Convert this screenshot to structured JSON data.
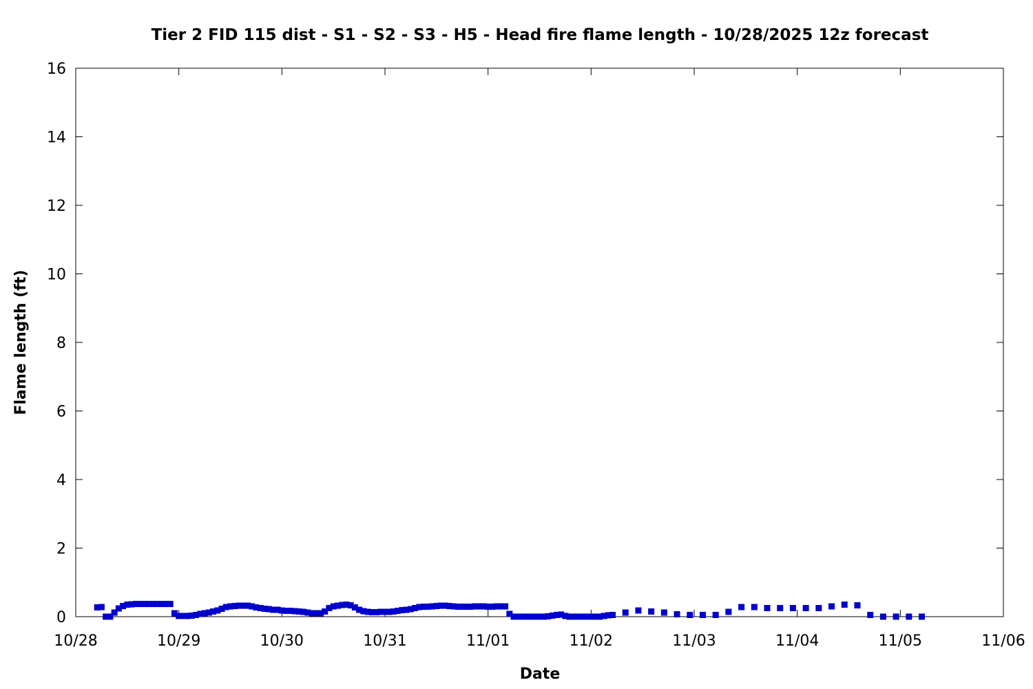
{
  "chart_data": {
    "type": "scatter",
    "title": "Tier 2 FID 115 dist - S1 - S2 - S3 - H5 - Head fire flame length - 10/28/2025 12z forecast",
    "xlabel": "Date",
    "ylabel": "Flame length (ft)",
    "x_axis_type": "date",
    "xlim": [
      "10/28",
      "11/06"
    ],
    "x_ticks": [
      "10/28",
      "10/29",
      "10/30",
      "10/31",
      "11/01",
      "11/02",
      "11/03",
      "11/04",
      "11/05",
      "11/06"
    ],
    "ylim": [
      0,
      16
    ],
    "y_ticks": [
      "0",
      "2",
      "4",
      "6",
      "8",
      "10",
      "12",
      "14",
      "16"
    ],
    "grid": false,
    "legend": "none",
    "marker": "square",
    "color": "#0000cc",
    "series": [
      {
        "points": [
          [
            "10/28 05:00",
            0.27
          ],
          [
            "10/28 06:00",
            0.28
          ],
          [
            "10/28 07:00",
            0.0
          ],
          [
            "10/28 08:00",
            0.0
          ],
          [
            "10/28 09:00",
            0.12
          ],
          [
            "10/28 10:00",
            0.24
          ],
          [
            "10/28 11:00",
            0.31
          ],
          [
            "10/28 12:00",
            0.35
          ],
          [
            "10/28 13:00",
            0.36
          ],
          [
            "10/28 14:00",
            0.37
          ],
          [
            "10/28 15:00",
            0.37
          ],
          [
            "10/28 16:00",
            0.37
          ],
          [
            "10/28 17:00",
            0.37
          ],
          [
            "10/28 18:00",
            0.37
          ],
          [
            "10/28 19:00",
            0.37
          ],
          [
            "10/28 20:00",
            0.37
          ],
          [
            "10/28 21:00",
            0.37
          ],
          [
            "10/28 22:00",
            0.37
          ],
          [
            "10/28 23:00",
            0.1
          ],
          [
            "10/29 00:00",
            0.02
          ],
          [
            "10/29 01:00",
            0.02
          ],
          [
            "10/29 02:00",
            0.02
          ],
          [
            "10/29 03:00",
            0.03
          ],
          [
            "10/29 04:00",
            0.05
          ],
          [
            "10/29 05:00",
            0.08
          ],
          [
            "10/29 06:00",
            0.1
          ],
          [
            "10/29 07:00",
            0.12
          ],
          [
            "10/29 08:00",
            0.15
          ],
          [
            "10/29 09:00",
            0.18
          ],
          [
            "10/29 10:00",
            0.23
          ],
          [
            "10/29 11:00",
            0.28
          ],
          [
            "10/29 12:00",
            0.3
          ],
          [
            "10/29 13:00",
            0.31
          ],
          [
            "10/29 14:00",
            0.32
          ],
          [
            "10/29 15:00",
            0.32
          ],
          [
            "10/29 16:00",
            0.32
          ],
          [
            "10/29 17:00",
            0.3
          ],
          [
            "10/29 18:00",
            0.27
          ],
          [
            "10/29 19:00",
            0.25
          ],
          [
            "10/29 20:00",
            0.23
          ],
          [
            "10/29 21:00",
            0.22
          ],
          [
            "10/29 22:00",
            0.2
          ],
          [
            "10/29 23:00",
            0.2
          ],
          [
            "10/30 00:00",
            0.18
          ],
          [
            "10/30 01:00",
            0.17
          ],
          [
            "10/30 02:00",
            0.17
          ],
          [
            "10/30 03:00",
            0.16
          ],
          [
            "10/30 04:00",
            0.15
          ],
          [
            "10/30 05:00",
            0.14
          ],
          [
            "10/30 06:00",
            0.12
          ],
          [
            "10/30 07:00",
            0.1
          ],
          [
            "10/30 08:00",
            0.1
          ],
          [
            "10/30 09:00",
            0.1
          ],
          [
            "10/30 10:00",
            0.15
          ],
          [
            "10/30 11:00",
            0.25
          ],
          [
            "10/30 12:00",
            0.3
          ],
          [
            "10/30 13:00",
            0.32
          ],
          [
            "10/30 14:00",
            0.34
          ],
          [
            "10/30 15:00",
            0.35
          ],
          [
            "10/30 16:00",
            0.33
          ],
          [
            "10/30 17:00",
            0.27
          ],
          [
            "10/30 18:00",
            0.2
          ],
          [
            "10/30 19:00",
            0.16
          ],
          [
            "10/30 20:00",
            0.14
          ],
          [
            "10/30 21:00",
            0.13
          ],
          [
            "10/30 22:00",
            0.13
          ],
          [
            "10/30 23:00",
            0.14
          ],
          [
            "10/31 00:00",
            0.14
          ],
          [
            "10/31 01:00",
            0.14
          ],
          [
            "10/31 02:00",
            0.15
          ],
          [
            "10/31 03:00",
            0.17
          ],
          [
            "10/31 04:00",
            0.19
          ],
          [
            "10/31 05:00",
            0.2
          ],
          [
            "10/31 06:00",
            0.22
          ],
          [
            "10/31 07:00",
            0.25
          ],
          [
            "10/31 08:00",
            0.28
          ],
          [
            "10/31 09:00",
            0.29
          ],
          [
            "10/31 10:00",
            0.29
          ],
          [
            "10/31 11:00",
            0.3
          ],
          [
            "10/31 12:00",
            0.31
          ],
          [
            "10/31 13:00",
            0.32
          ],
          [
            "10/31 14:00",
            0.32
          ],
          [
            "10/31 15:00",
            0.31
          ],
          [
            "10/31 16:00",
            0.3
          ],
          [
            "10/31 17:00",
            0.29
          ],
          [
            "10/31 18:00",
            0.29
          ],
          [
            "10/31 19:00",
            0.29
          ],
          [
            "10/31 20:00",
            0.29
          ],
          [
            "10/31 21:00",
            0.3
          ],
          [
            "10/31 22:00",
            0.3
          ],
          [
            "10/31 23:00",
            0.3
          ],
          [
            "11/01 00:00",
            0.29
          ],
          [
            "11/01 01:00",
            0.29
          ],
          [
            "11/01 02:00",
            0.3
          ],
          [
            "11/01 03:00",
            0.3
          ],
          [
            "11/01 04:00",
            0.3
          ],
          [
            "11/01 05:00",
            0.08
          ],
          [
            "11/01 06:00",
            0.0
          ],
          [
            "11/01 07:00",
            0.0
          ],
          [
            "11/01 08:00",
            0.0
          ],
          [
            "11/01 09:00",
            0.0
          ],
          [
            "11/01 10:00",
            0.0
          ],
          [
            "11/01 11:00",
            0.0
          ],
          [
            "11/01 12:00",
            0.0
          ],
          [
            "11/01 13:00",
            0.0
          ],
          [
            "11/01 14:00",
            0.01
          ],
          [
            "11/01 15:00",
            0.03
          ],
          [
            "11/01 16:00",
            0.05
          ],
          [
            "11/01 17:00",
            0.06
          ],
          [
            "11/01 18:00",
            0.02
          ],
          [
            "11/01 19:00",
            0.0
          ],
          [
            "11/01 20:00",
            0.0
          ],
          [
            "11/01 21:00",
            0.0
          ],
          [
            "11/01 22:00",
            0.0
          ],
          [
            "11/01 23:00",
            0.0
          ],
          [
            "11/02 00:00",
            0.0
          ],
          [
            "11/02 01:00",
            0.0
          ],
          [
            "11/02 02:00",
            0.0
          ],
          [
            "11/02 03:00",
            0.02
          ],
          [
            "11/02 04:00",
            0.04
          ],
          [
            "11/02 05:00",
            0.05
          ],
          [
            "11/02 08:00",
            0.12
          ],
          [
            "11/02 11:00",
            0.18
          ],
          [
            "11/02 14:00",
            0.15
          ],
          [
            "11/02 17:00",
            0.12
          ],
          [
            "11/02 20:00",
            0.07
          ],
          [
            "11/02 23:00",
            0.05
          ],
          [
            "11/03 02:00",
            0.05
          ],
          [
            "11/03 05:00",
            0.05
          ],
          [
            "11/03 08:00",
            0.14
          ],
          [
            "11/03 11:00",
            0.28
          ],
          [
            "11/03 14:00",
            0.28
          ],
          [
            "11/03 17:00",
            0.25
          ],
          [
            "11/03 20:00",
            0.25
          ],
          [
            "11/03 23:00",
            0.25
          ],
          [
            "11/04 02:00",
            0.25
          ],
          [
            "11/04 05:00",
            0.25
          ],
          [
            "11/04 08:00",
            0.3
          ],
          [
            "11/04 11:00",
            0.35
          ],
          [
            "11/04 14:00",
            0.33
          ],
          [
            "11/04 17:00",
            0.05
          ],
          [
            "11/04 20:00",
            0.0
          ],
          [
            "11/04 23:00",
            0.0
          ],
          [
            "11/05 02:00",
            0.0
          ],
          [
            "11/05 05:00",
            0.0
          ]
        ]
      }
    ]
  }
}
